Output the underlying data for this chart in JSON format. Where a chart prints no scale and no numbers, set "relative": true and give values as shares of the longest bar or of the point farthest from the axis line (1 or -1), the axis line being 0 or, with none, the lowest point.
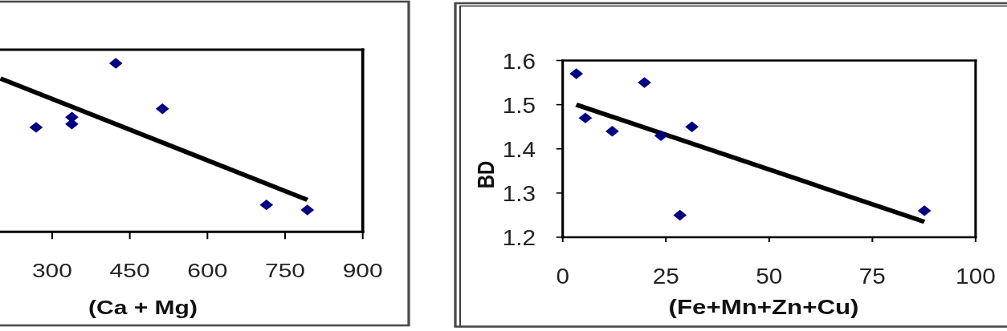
{
  "chart_data": [
    {
      "type": "scatter",
      "xlabel": "(Ca + Mg)",
      "relative": true,
      "tick_labels": "x",
      "xlim": [
        200,
        900
      ],
      "xticks": [
        300,
        450,
        600,
        750,
        900
      ],
      "series": [
        {
          "type": "line",
          "color": "#000000",
          "x": [
            200,
            793
          ],
          "values": [
            0.91,
            0.19
          ]
        },
        {
          "color": "#000080",
          "marker": "diamond",
          "x": [
            269,
            338,
            338,
            423,
            513,
            714,
            793
          ],
          "values": [
            0.62,
            0.68,
            0.64,
            1,
            0.73,
            0.16,
            0.13
          ]
        }
      ]
    },
    {
      "type": "scatter",
      "xlabel": "(Fe+Mn+Zn+Cu)",
      "ylabel": "BD",
      "xlim": [
        0,
        100
      ],
      "xticks": [
        0,
        25,
        50,
        75,
        100
      ],
      "ylim": [
        1.2,
        1.6
      ],
      "yticks": [
        1.2,
        1.3,
        1.4,
        1.5,
        1.6
      ],
      "series": [
        {
          "type": "line",
          "color": "#000000",
          "x": [
            3.3,
            87.6
          ],
          "values": [
            1.5,
            1.235
          ]
        },
        {
          "color": "#000080",
          "marker": "diamond",
          "x": [
            3.3,
            5.5,
            12,
            19.8,
            23.8,
            28.4,
            31.3,
            87.6
          ],
          "values": [
            1.57,
            1.47,
            1.44,
            1.55,
            1.43,
            1.25,
            1.45,
            1.26
          ]
        }
      ]
    }
  ]
}
